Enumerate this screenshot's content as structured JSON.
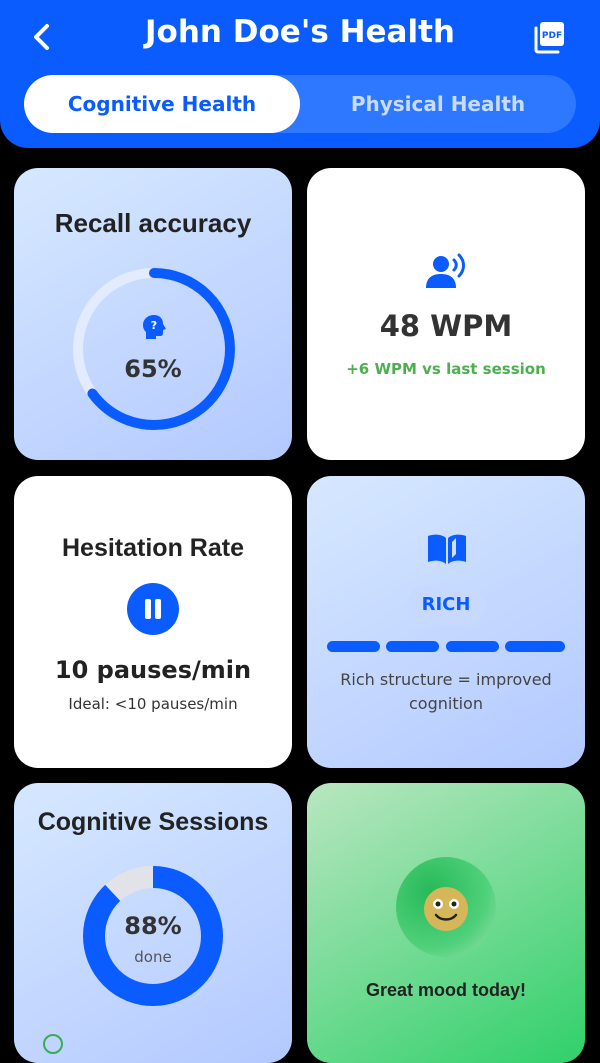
{
  "header": {
    "title": "John Doe's Health",
    "back_icon": "chevron-left-icon",
    "pdf_icon": "pdf-icon",
    "pdf_label": "PDF",
    "tabs": [
      {
        "label": "Cognitive Health",
        "active": true
      },
      {
        "label": "Physical Health",
        "active": false
      }
    ],
    "accent_color": "#0a5cff"
  },
  "cards": {
    "recall": {
      "title": "Recall accuracy",
      "icon": "brain-question-icon",
      "value_label": "65%",
      "progress": 0.65
    },
    "speech": {
      "icon": "speaking-person-icon",
      "value": "48 WPM",
      "delta": "+6 WPM vs last session",
      "delta_color": "#4caf50"
    },
    "hesitation": {
      "title": "Hesitation Rate",
      "icon": "pause-icon",
      "value": "10 pauses/min",
      "ideal": "Ideal: <10 pauses/min"
    },
    "structure": {
      "icon": "open-book-icon",
      "badge": "RICH",
      "segments_filled": 4,
      "segments_total": 4,
      "caption_line1": "Rich structure = improved",
      "caption_line2": "cognition"
    },
    "sessions": {
      "title": "Cognitive Sessions",
      "value_label": "88%",
      "sub_label": "done",
      "progress": 0.88
    },
    "mood": {
      "icon": "smiling-face-icon",
      "text": "Great mood today!"
    }
  }
}
